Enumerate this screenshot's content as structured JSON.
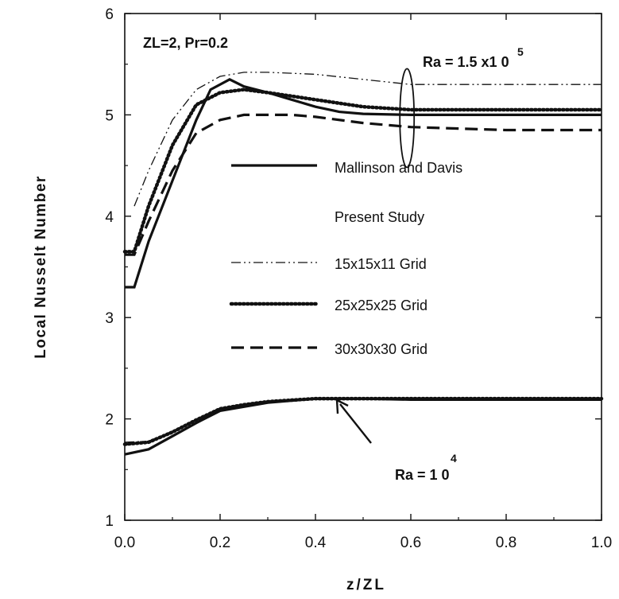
{
  "chart_data": {
    "type": "line",
    "xlabel": "z/ZL",
    "ylabel": "Local  Nusselt  Number",
    "xlim": [
      0.0,
      1.0
    ],
    "ylim": [
      1,
      6
    ],
    "xticks": [
      "0.0",
      "0.2",
      "0.4",
      "0.6",
      "0.8",
      "1.0"
    ],
    "yticks": [
      "1",
      "2",
      "3",
      "4",
      "5",
      "6"
    ],
    "grid": false,
    "legend_position": "center",
    "params_text": "ZL=2,    Pr=0.2",
    "legend_heading": "Present  Study",
    "annotations": {
      "high": {
        "label": "Ra = 1.5 x1 0",
        "exp": "5"
      },
      "low": {
        "label": "Ra = 1 0",
        "exp": "4"
      }
    },
    "series": [
      {
        "name": "Mallinson and Davis",
        "style": "solid",
        "group": "Ra=1.5x10^5",
        "x": [
          0.0,
          0.02,
          0.05,
          0.1,
          0.15,
          0.18,
          0.22,
          0.25,
          0.3,
          0.35,
          0.4,
          0.45,
          0.5,
          0.6,
          0.8,
          1.0
        ],
        "y": [
          3.3,
          3.3,
          3.75,
          4.35,
          4.95,
          5.25,
          5.35,
          5.28,
          5.22,
          5.15,
          5.08,
          5.03,
          5.01,
          5.0,
          5.0,
          5.0
        ]
      },
      {
        "name": "15x15x11 Grid",
        "style": "dashdot",
        "group": "Ra=1.5x10^5",
        "x": [
          0.02,
          0.05,
          0.1,
          0.15,
          0.2,
          0.25,
          0.3,
          0.4,
          0.5,
          0.6,
          0.8,
          1.0
        ],
        "y": [
          4.1,
          4.45,
          4.95,
          5.25,
          5.38,
          5.42,
          5.42,
          5.4,
          5.35,
          5.3,
          5.3,
          5.3
        ]
      },
      {
        "name": "25x25x25 Grid",
        "style": "dotted",
        "group": "Ra=1.5x10^5",
        "x": [
          0.0,
          0.02,
          0.05,
          0.1,
          0.15,
          0.2,
          0.25,
          0.3,
          0.4,
          0.5,
          0.6,
          0.8,
          1.0
        ],
        "y": [
          3.65,
          3.65,
          4.1,
          4.7,
          5.1,
          5.22,
          5.25,
          5.22,
          5.15,
          5.08,
          5.05,
          5.05,
          5.05
        ]
      },
      {
        "name": "30x30x30 Grid",
        "style": "dashed",
        "group": "Ra=1.5x10^5",
        "x": [
          0.0,
          0.02,
          0.05,
          0.1,
          0.15,
          0.2,
          0.25,
          0.3,
          0.35,
          0.4,
          0.5,
          0.6,
          0.8,
          1.0
        ],
        "y": [
          3.62,
          3.62,
          3.95,
          4.45,
          4.82,
          4.95,
          5.0,
          5.0,
          5.0,
          4.98,
          4.92,
          4.88,
          4.85,
          4.85
        ]
      },
      {
        "name": "Mallinson and Davis",
        "style": "solid",
        "group": "Ra=10^4",
        "x": [
          0.0,
          0.05,
          0.1,
          0.15,
          0.2,
          0.25,
          0.3,
          0.4,
          0.5,
          0.6,
          0.8,
          1.0
        ],
        "y": [
          1.65,
          1.7,
          1.83,
          1.96,
          2.08,
          2.12,
          2.16,
          2.2,
          2.2,
          2.19,
          2.19,
          2.19
        ]
      },
      {
        "name": "15x15x11 Grid",
        "style": "dashdot",
        "group": "Ra=10^4",
        "x": [
          0.0,
          0.05,
          0.1,
          0.15,
          0.2,
          0.25,
          0.3,
          0.4,
          0.5,
          0.6,
          0.8,
          1.0
        ],
        "y": [
          1.77,
          1.78,
          1.88,
          1.99,
          2.09,
          2.14,
          2.17,
          2.2,
          2.2,
          2.2,
          2.2,
          2.2
        ]
      },
      {
        "name": "25x25x25 Grid",
        "style": "dotted",
        "group": "Ra=10^4",
        "x": [
          0.0,
          0.05,
          0.1,
          0.15,
          0.2,
          0.25,
          0.3,
          0.4,
          0.5,
          0.6,
          0.8,
          1.0
        ],
        "y": [
          1.75,
          1.77,
          1.87,
          1.99,
          2.1,
          2.14,
          2.17,
          2.2,
          2.2,
          2.2,
          2.2,
          2.2
        ]
      },
      {
        "name": "30x30x30 Grid",
        "style": "dashed",
        "group": "Ra=10^4",
        "x": [
          0.0,
          0.05,
          0.1,
          0.15,
          0.2,
          0.25,
          0.3,
          0.4,
          0.5,
          0.6,
          0.8,
          1.0
        ],
        "y": [
          1.75,
          1.77,
          1.87,
          1.99,
          2.1,
          2.14,
          2.17,
          2.2,
          2.2,
          2.2,
          2.2,
          2.2
        ]
      }
    ],
    "legend": [
      {
        "label": "Mallinson and Davis",
        "style": "solid"
      },
      {
        "label": "15x15x11 Grid",
        "style": "dashdot"
      },
      {
        "label": "25x25x25 Grid",
        "style": "dotted"
      },
      {
        "label": "30x30x30 Grid",
        "style": "dashed"
      }
    ]
  }
}
